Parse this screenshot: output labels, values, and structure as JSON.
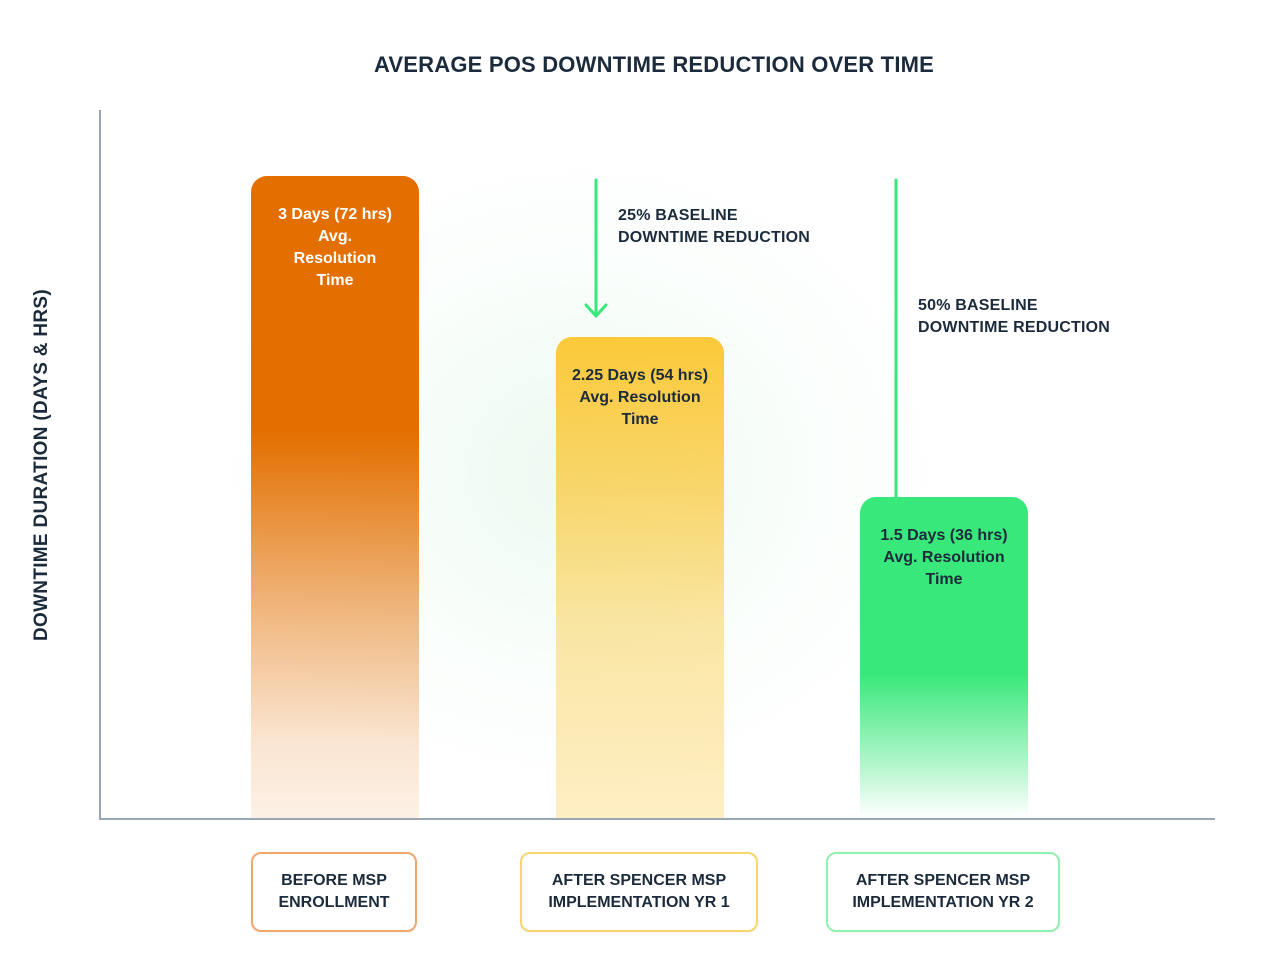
{
  "chart_data": {
    "type": "bar",
    "title": "AVERAGE POS DOWNTIME REDUCTION OVER TIME",
    "xlabel": "",
    "ylabel": "DOWNTIME DURATION (DAYS & HRS)",
    "ylim": [
      0,
      3.3
    ],
    "grid": false,
    "categories": [
      "BEFORE MSP ENROLLMENT",
      "AFTER SPENCER MSP IMPLEMENTATION YR 1",
      "AFTER SPENCER MSP IMPLEMENTATION YR 2"
    ],
    "values": [
      3,
      2.25,
      1.5
    ],
    "bar_labels": [
      "3 Days (72 hrs) Avg. Resolution Time",
      "2.25 Days (54 hrs) Avg. Resolution Time",
      "1.5 Days (36 hrs) Avg. Resolution Time"
    ],
    "annotations": [
      "25% BASELINE DOWNTIME REDUCTION",
      "50% BASELINE DOWNTIME REDUCTION"
    ]
  },
  "bars": [
    {
      "label_lines": [
        "3 Days (72 hrs)",
        "Avg.",
        "Resolution",
        "Time"
      ],
      "color": "#e36f00"
    },
    {
      "label_lines": [
        "2.25 Days (54 hrs)",
        "Avg. Resolution",
        "Time"
      ],
      "color": "#fbc93a"
    },
    {
      "label_lines": [
        "1.5 Days (36 hrs)",
        "Avg. Resolution",
        "Time"
      ],
      "color": "#38e87a"
    }
  ],
  "categories": [
    {
      "lines": [
        "BEFORE MSP",
        "ENROLLMENT"
      ],
      "border_color": "#f0a86a"
    },
    {
      "lines": [
        "AFTER SPENCER MSP",
        "IMPLEMENTATION YR 1"
      ],
      "border_color": "#f7d66e"
    },
    {
      "lines": [
        "AFTER SPENCER MSP",
        "IMPLEMENTATION YR 2"
      ],
      "border_color": "#8ff0b0"
    }
  ],
  "annotations": [
    {
      "lines": [
        "25% BASELINE",
        "DOWNTIME REDUCTION"
      ]
    },
    {
      "lines": [
        "50% BASELINE",
        "DOWNTIME REDUCTION"
      ]
    }
  ],
  "arrow_color": "#38e87a"
}
